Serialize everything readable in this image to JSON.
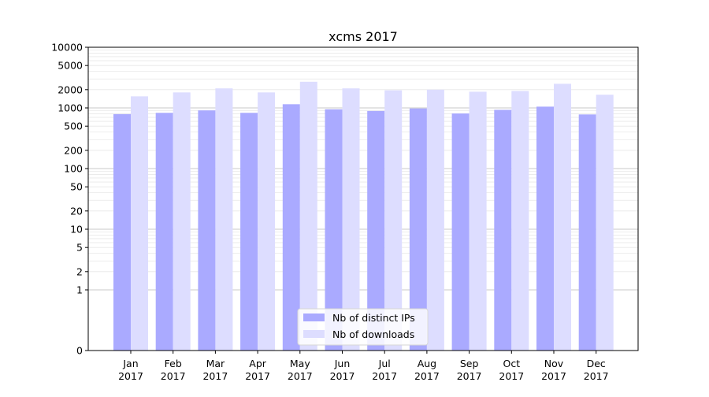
{
  "chart_data": {
    "type": "bar",
    "title": "xcms 2017",
    "xlabel": "",
    "ylabel": "",
    "y_scale": "symlog",
    "ylim": [
      0,
      10000
    ],
    "y_ticks": [
      0,
      1,
      2,
      5,
      10,
      20,
      50,
      100,
      200,
      500,
      1000,
      2000,
      5000,
      10000
    ],
    "grid": true,
    "legend_position": "bottom-center",
    "categories": [
      {
        "month": "Jan",
        "year": "2017"
      },
      {
        "month": "Feb",
        "year": "2017"
      },
      {
        "month": "Mar",
        "year": "2017"
      },
      {
        "month": "Apr",
        "year": "2017"
      },
      {
        "month": "May",
        "year": "2017"
      },
      {
        "month": "Jun",
        "year": "2017"
      },
      {
        "month": "Jul",
        "year": "2017"
      },
      {
        "month": "Aug",
        "year": "2017"
      },
      {
        "month": "Sep",
        "year": "2017"
      },
      {
        "month": "Oct",
        "year": "2017"
      },
      {
        "month": "Nov",
        "year": "2017"
      },
      {
        "month": "Dec",
        "year": "2017"
      }
    ],
    "series": [
      {
        "name": "Nb of distinct IPs",
        "color": "#aaaaff",
        "values": [
          790,
          830,
          910,
          830,
          1150,
          950,
          890,
          980,
          810,
          930,
          1050,
          780
        ]
      },
      {
        "name": "Nb of downloads",
        "color": "#ddddff",
        "values": [
          1550,
          1800,
          2100,
          1800,
          2700,
          2100,
          1950,
          2000,
          1850,
          1900,
          2500,
          1650
        ]
      }
    ]
  }
}
